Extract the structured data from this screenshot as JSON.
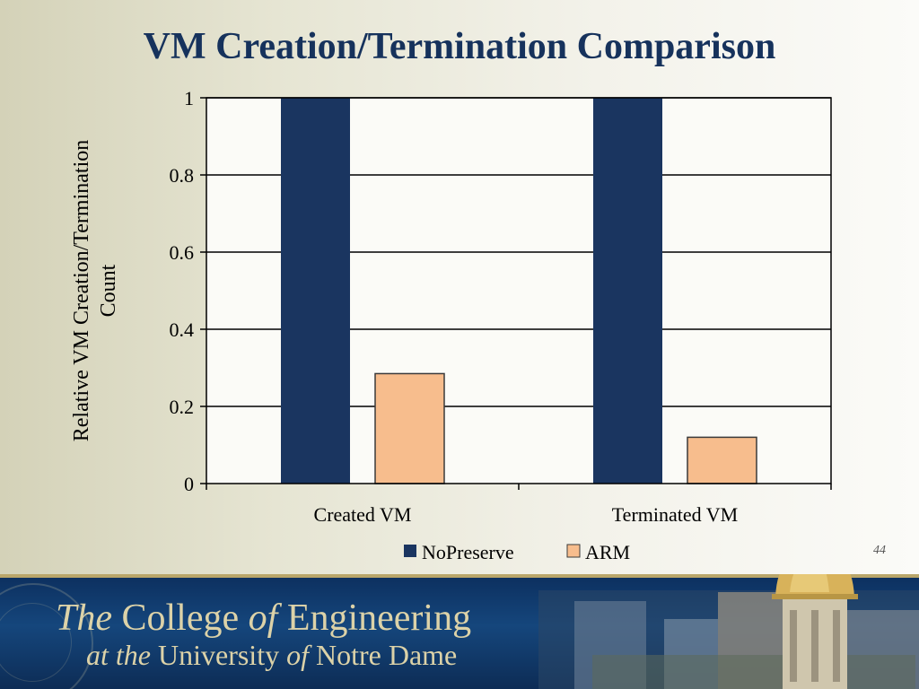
{
  "slide": {
    "title": "VM Creation/Termination Comparison",
    "slide_number": "44"
  },
  "chart_data": {
    "type": "bar",
    "categories": [
      "Created VM",
      "Terminated VM"
    ],
    "series": [
      {
        "name": "NoPreserve",
        "values": [
          1,
          1
        ],
        "color": "#1a3560"
      },
      {
        "name": "ARM",
        "values": [
          0.285,
          0.12
        ],
        "color": "#f7bd8d"
      }
    ],
    "yticks": [
      "0",
      "0.2",
      "0.4",
      "0.6",
      "0.8",
      "1"
    ],
    "ylim": [
      0,
      1
    ],
    "ylabel_lines": [
      "Relative VM Creation/Termination",
      "Count"
    ],
    "grid": true,
    "legend_position": "bottom"
  },
  "footer": {
    "line1_prefix": "The",
    "line1_main": "College",
    "line1_of": "of",
    "line1_end": "Engineering",
    "line2_prefix": "at the",
    "line2_main": "University",
    "line2_of": "of",
    "line2_end": "Notre Dame",
    "colors": {
      "band": "#0c2f5e",
      "text": "#dcd2a8",
      "dome": "#c9a84c"
    }
  }
}
